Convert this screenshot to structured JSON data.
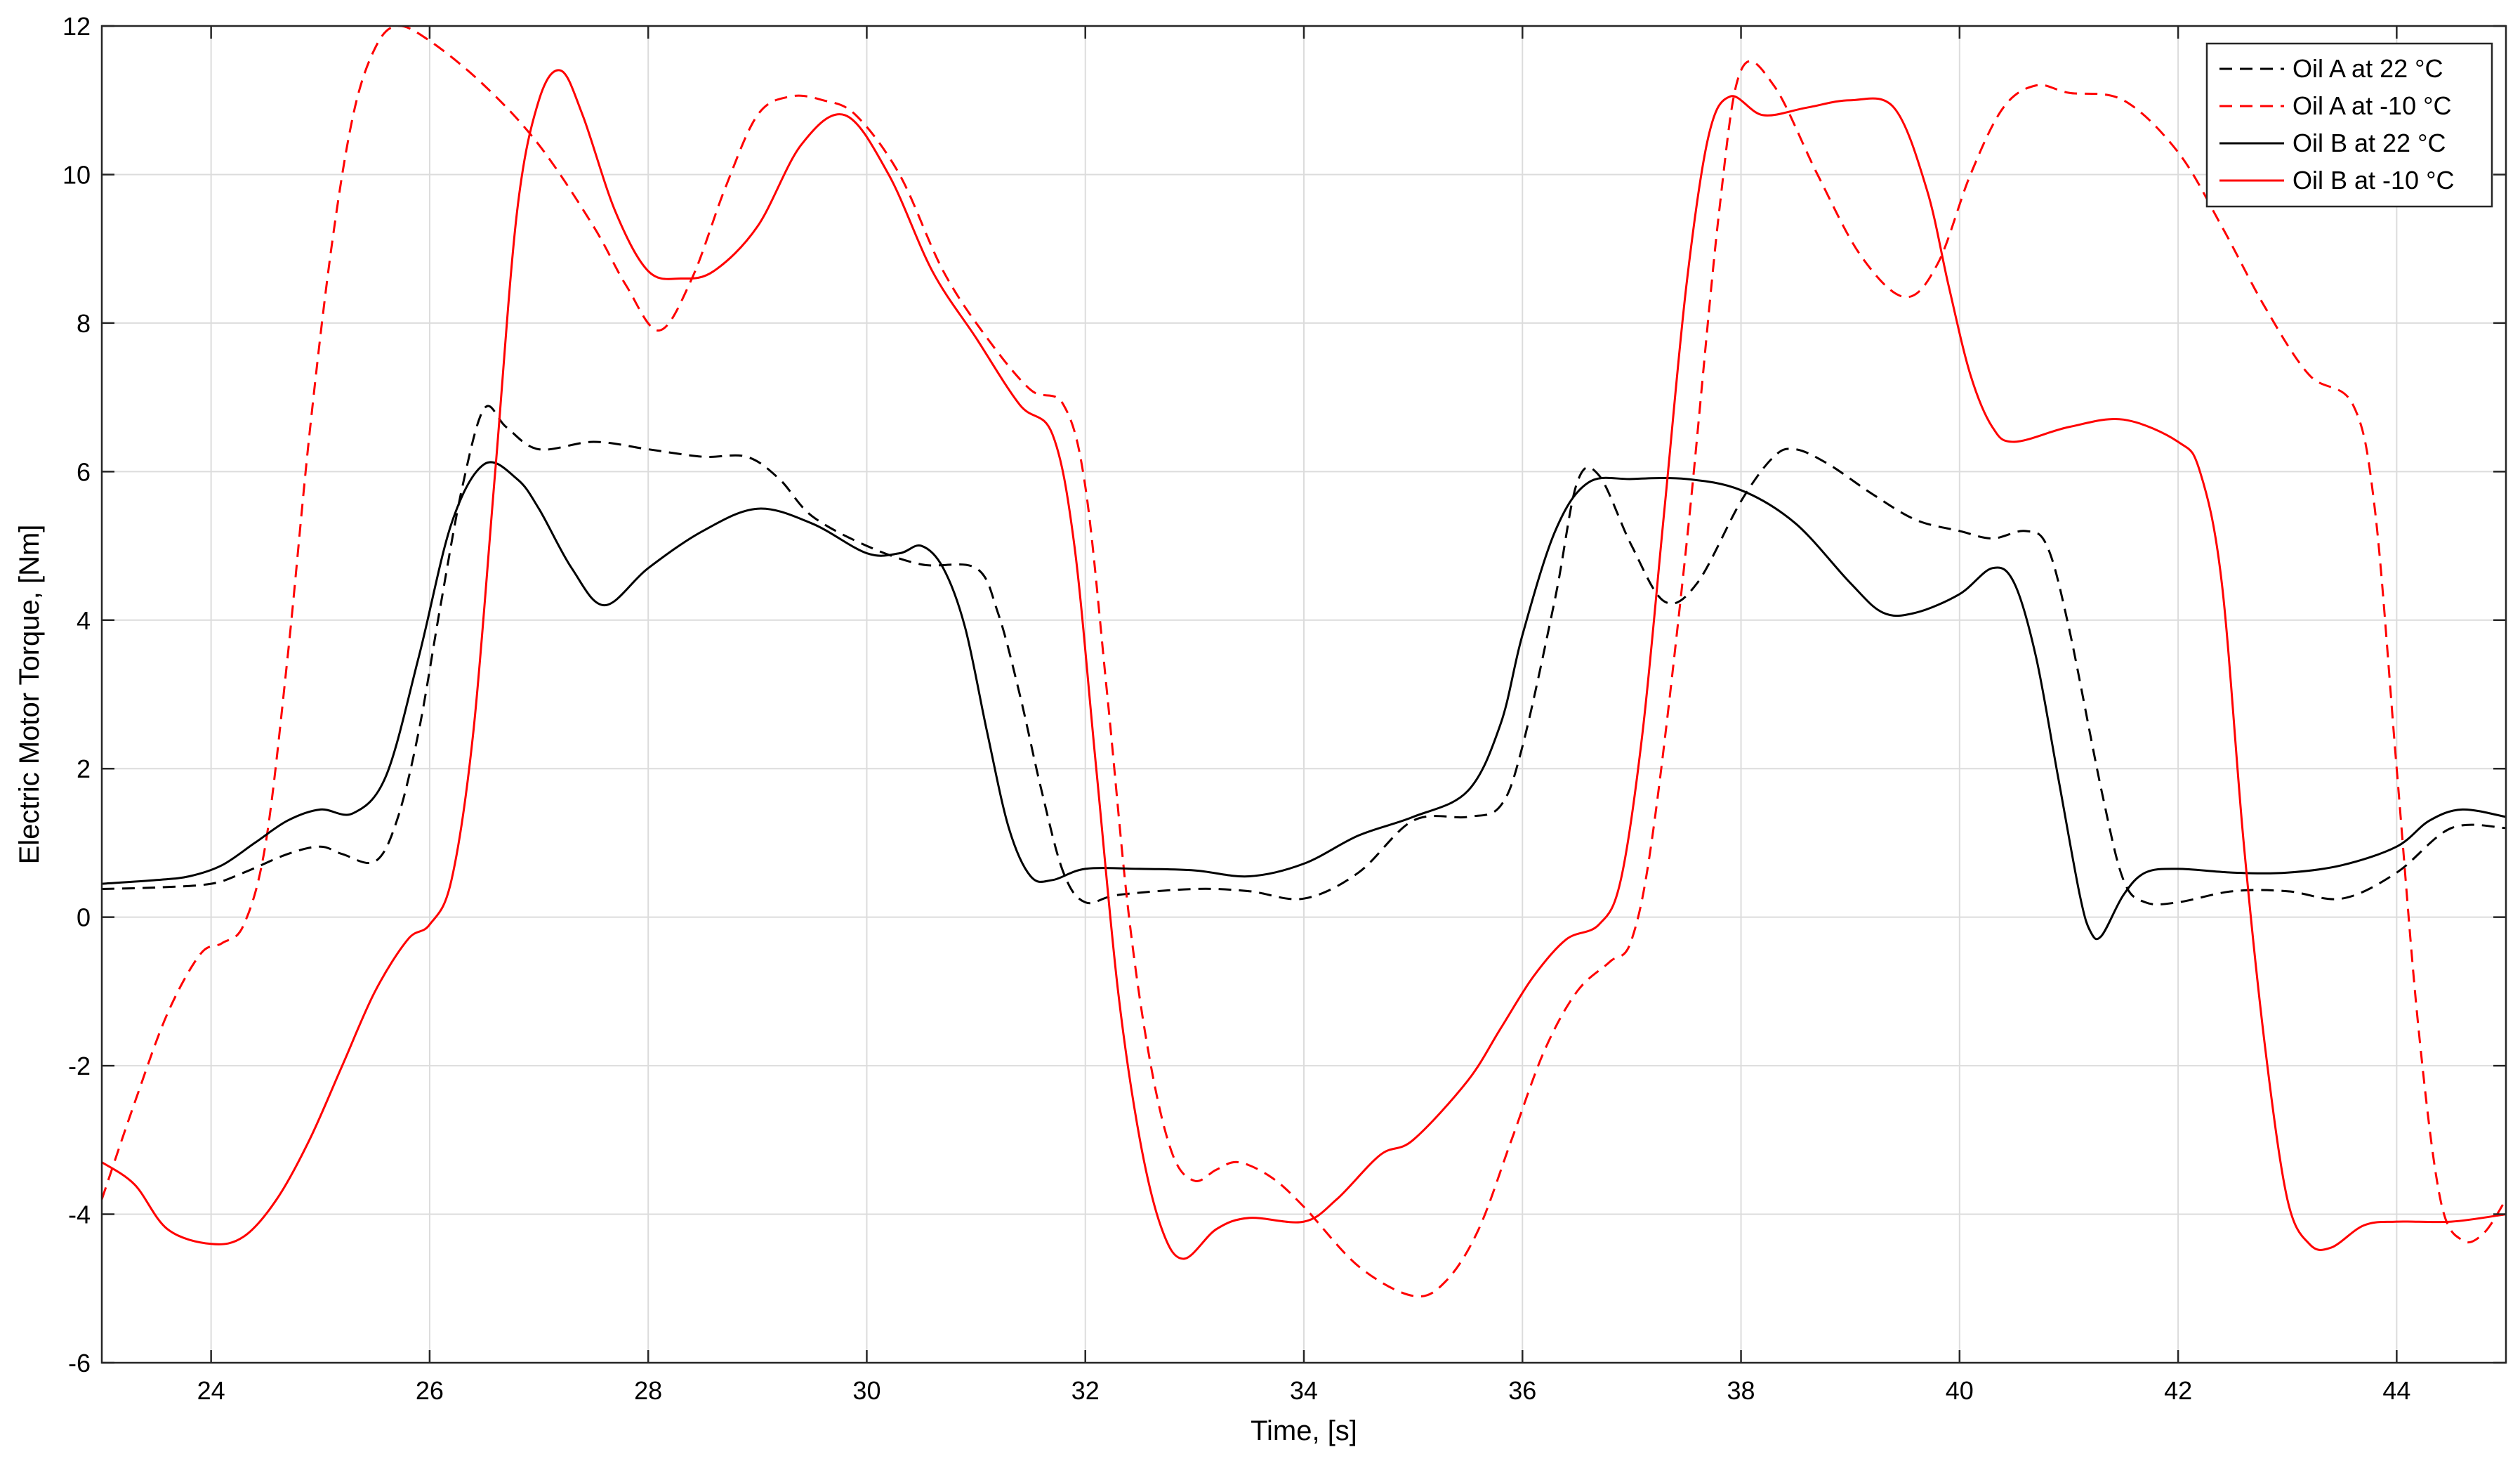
{
  "chart_data": {
    "type": "line",
    "xlabel": "Time, [s]",
    "ylabel": "Electric Motor Torque, [Nm]",
    "xlim": [
      23,
      45
    ],
    "ylim": [
      -6,
      12
    ],
    "xticks": [
      24,
      26,
      28,
      30,
      32,
      34,
      36,
      38,
      40,
      42,
      44
    ],
    "yticks": [
      -6,
      -4,
      -2,
      0,
      2,
      4,
      6,
      8,
      10,
      12
    ],
    "xtick_labels": [
      "24",
      "26",
      "28",
      "30",
      "32",
      "34",
      "36",
      "38",
      "40",
      "42",
      "44"
    ],
    "ytick_labels": [
      "-6",
      "-4",
      "-2",
      "0",
      "2",
      "4",
      "6",
      "8",
      "10",
      "12"
    ],
    "grid": true,
    "legend_position": "top-right",
    "series": [
      {
        "name": "Oil A at 22 °C",
        "color": "#000000",
        "dash": "dashed",
        "x": [
          23,
          23.5,
          24,
          24.3,
          24.7,
          25,
          25.2,
          25.5,
          25.7,
          25.9,
          26.1,
          26.3,
          26.5,
          26.7,
          27,
          27.5,
          28,
          28.5,
          28.9,
          29.2,
          29.5,
          30,
          30.5,
          31,
          31.2,
          31.4,
          31.6,
          31.8,
          32,
          32.3,
          33,
          33.5,
          34,
          34.5,
          35,
          35.5,
          35.8,
          36,
          36.3,
          36.5,
          36.7,
          37,
          37.3,
          37.6,
          38,
          38.3,
          38.5,
          38.8,
          39.2,
          39.6,
          40,
          40.3,
          40.6,
          40.8,
          41,
          41.3,
          41.5,
          41.7,
          42,
          42.5,
          43,
          43.5,
          44,
          44.5,
          45
        ],
        "y": [
          0.38,
          0.4,
          0.45,
          0.6,
          0.85,
          0.95,
          0.85,
          0.75,
          1.3,
          2.5,
          4.2,
          5.8,
          6.85,
          6.6,
          6.3,
          6.4,
          6.3,
          6.2,
          6.2,
          5.9,
          5.4,
          5.0,
          4.75,
          4.7,
          4.1,
          3.0,
          1.7,
          0.6,
          0.2,
          0.3,
          0.38,
          0.35,
          0.25,
          0.6,
          1.3,
          1.35,
          1.5,
          2.3,
          4.3,
          5.85,
          5.95,
          5.0,
          4.25,
          4.5,
          5.6,
          6.2,
          6.3,
          6.1,
          5.7,
          5.35,
          5.2,
          5.1,
          5.2,
          5.0,
          3.9,
          1.7,
          0.5,
          0.2,
          0.2,
          0.35,
          0.35,
          0.25,
          0.6,
          1.2,
          1.2
        ]
      },
      {
        "name": "Oil A at -10 °C",
        "color": "#ff0000",
        "dash": "dashed",
        "x": [
          23,
          23.3,
          23.6,
          23.9,
          24.1,
          24.3,
          24.5,
          24.7,
          24.9,
          25.1,
          25.3,
          25.5,
          25.7,
          26,
          26.5,
          27,
          27.5,
          27.8,
          28.1,
          28.4,
          28.7,
          29,
          29.3,
          29.6,
          29.9,
          30.3,
          30.7,
          31.1,
          31.5,
          31.8,
          32,
          32.2,
          32.4,
          32.6,
          32.8,
          33,
          33.2,
          33.4,
          33.7,
          34,
          34.5,
          35,
          35.3,
          35.6,
          35.9,
          36.2,
          36.5,
          36.8,
          37,
          37.2,
          37.5,
          37.8,
          38,
          38.3,
          38.7,
          39.1,
          39.5,
          39.8,
          40.1,
          40.4,
          40.7,
          41,
          41.5,
          42,
          42.4,
          42.8,
          43.2,
          43.6,
          43.8,
          44,
          44.2,
          44.4,
          44.6,
          44.8,
          45
        ],
        "y": [
          -3.8,
          -2.5,
          -1.3,
          -0.5,
          -0.35,
          -0.1,
          1.0,
          3.5,
          6.5,
          9.0,
          10.8,
          11.7,
          12.0,
          11.8,
          11.2,
          10.4,
          9.3,
          8.5,
          7.9,
          8.6,
          9.8,
          10.8,
          11.05,
          11.0,
          10.8,
          10.0,
          8.7,
          7.8,
          7.1,
          6.9,
          5.8,
          3.0,
          0.0,
          -2.0,
          -3.2,
          -3.55,
          -3.4,
          -3.3,
          -3.5,
          -3.9,
          -4.7,
          -5.1,
          -4.9,
          -4.2,
          -3.0,
          -1.8,
          -1.0,
          -0.6,
          -0.3,
          1.2,
          5.0,
          9.5,
          11.4,
          11.2,
          10.0,
          8.9,
          8.35,
          8.8,
          10.0,
          10.9,
          11.2,
          11.1,
          11.0,
          10.3,
          9.3,
          8.2,
          7.3,
          6.9,
          5.5,
          2.0,
          -1.5,
          -3.8,
          -4.35,
          -4.25,
          -3.8
        ]
      },
      {
        "name": "Oil B at 22 °C",
        "color": "#000000",
        "dash": "solid",
        "x": [
          23,
          23.5,
          23.8,
          24.1,
          24.4,
          24.7,
          25,
          25.3,
          25.6,
          25.9,
          26.2,
          26.5,
          26.8,
          27,
          27.3,
          27.6,
          28,
          28.5,
          29,
          29.5,
          30,
          30.3,
          30.5,
          30.7,
          30.9,
          31.1,
          31.3,
          31.5,
          31.7,
          32,
          32.5,
          33,
          33.5,
          34,
          34.5,
          35,
          35.5,
          35.8,
          36,
          36.3,
          36.6,
          37,
          37.5,
          38,
          38.5,
          39,
          39.3,
          39.6,
          40,
          40.3,
          40.5,
          40.7,
          40.9,
          41.1,
          41.2,
          41.3,
          41.5,
          41.7,
          42,
          42.5,
          43,
          43.5,
          44,
          44.3,
          44.6,
          45
        ],
        "y": [
          0.45,
          0.5,
          0.55,
          0.7,
          1.0,
          1.3,
          1.45,
          1.4,
          1.9,
          3.5,
          5.3,
          6.1,
          5.9,
          5.5,
          4.7,
          4.2,
          4.7,
          5.2,
          5.5,
          5.3,
          4.9,
          4.9,
          5.0,
          4.7,
          3.9,
          2.5,
          1.2,
          0.55,
          0.5,
          0.65,
          0.65,
          0.63,
          0.55,
          0.72,
          1.1,
          1.35,
          1.7,
          2.6,
          3.8,
          5.2,
          5.85,
          5.9,
          5.9,
          5.75,
          5.3,
          4.5,
          4.1,
          4.1,
          4.35,
          4.7,
          4.5,
          3.5,
          1.9,
          0.3,
          -0.2,
          -0.25,
          0.3,
          0.6,
          0.65,
          0.6,
          0.6,
          0.7,
          0.95,
          1.3,
          1.45,
          1.35
        ]
      },
      {
        "name": "Oil B at -10 °C",
        "color": "#ff0000",
        "dash": "solid",
        "x": [
          23,
          23.3,
          23.6,
          24,
          24.3,
          24.6,
          24.9,
          25.2,
          25.5,
          25.8,
          26,
          26.2,
          26.4,
          26.6,
          26.8,
          27,
          27.2,
          27.4,
          27.7,
          28,
          28.3,
          28.6,
          29,
          29.4,
          29.8,
          30.2,
          30.6,
          31,
          31.4,
          31.7,
          31.9,
          32.1,
          32.3,
          32.5,
          32.7,
          32.9,
          33.2,
          33.5,
          34,
          34.3,
          34.7,
          35,
          35.5,
          35.8,
          36.1,
          36.4,
          36.7,
          36.9,
          37.1,
          37.3,
          37.5,
          37.7,
          37.9,
          38.2,
          38.6,
          39,
          39.4,
          39.7,
          39.9,
          40.1,
          40.3,
          40.5,
          41,
          41.5,
          42,
          42.2,
          42.4,
          42.6,
          42.8,
          43,
          43.2,
          43.4,
          43.7,
          44,
          44.5,
          45
        ],
        "y": [
          -3.3,
          -3.6,
          -4.2,
          -4.4,
          -4.3,
          -3.8,
          -3.0,
          -2.0,
          -1.0,
          -0.3,
          -0.1,
          0.5,
          2.5,
          6.0,
          9.5,
          11.0,
          11.4,
          10.8,
          9.5,
          8.7,
          8.6,
          8.7,
          9.3,
          10.4,
          10.8,
          10.0,
          8.7,
          7.8,
          6.9,
          6.5,
          5.0,
          2.0,
          -1.0,
          -3.0,
          -4.2,
          -4.6,
          -4.2,
          -4.05,
          -4.1,
          -3.8,
          -3.2,
          -3.0,
          -2.2,
          -1.5,
          -0.8,
          -0.3,
          -0.1,
          0.5,
          2.5,
          5.5,
          8.5,
          10.5,
          11.05,
          10.8,
          10.9,
          11.0,
          10.9,
          9.8,
          8.5,
          7.3,
          6.6,
          6.4,
          6.6,
          6.7,
          6.4,
          6.0,
          4.5,
          1.0,
          -1.8,
          -3.8,
          -4.4,
          -4.45,
          -4.15,
          -4.1,
          -4.1,
          -4.0
        ]
      }
    ]
  }
}
